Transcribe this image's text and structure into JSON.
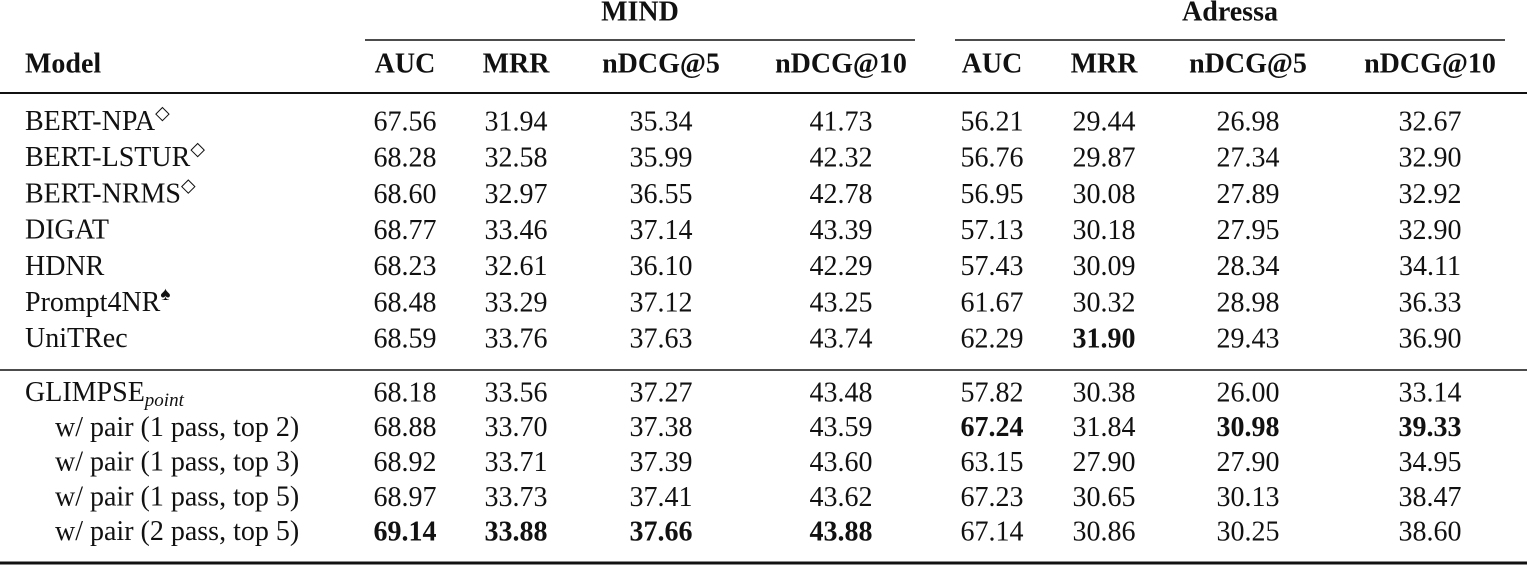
{
  "header": {
    "model_label": "Model",
    "groups": [
      {
        "label": "MIND",
        "columns": [
          "AUC",
          "MRR",
          "nDCG@5",
          "nDCG@10"
        ]
      },
      {
        "label": "Adressa",
        "columns": [
          "AUC",
          "MRR",
          "nDCG@5",
          "nDCG@10"
        ]
      }
    ]
  },
  "table": {
    "sections": [
      {
        "rows": [
          {
            "model": "BERT-NPA",
            "sup": "◇",
            "cells": [
              "67.56",
              "31.94",
              "35.34",
              "41.73",
              "56.21",
              "29.44",
              "26.98",
              "32.67"
            ],
            "bold": []
          },
          {
            "model": "BERT-LSTUR",
            "sup": "◇",
            "cells": [
              "68.28",
              "32.58",
              "35.99",
              "42.32",
              "56.76",
              "29.87",
              "27.34",
              "32.90"
            ],
            "bold": []
          },
          {
            "model": "BERT-NRMS",
            "sup": "◇",
            "cells": [
              "68.60",
              "32.97",
              "36.55",
              "42.78",
              "56.95",
              "30.08",
              "27.89",
              "32.92"
            ],
            "bold": []
          },
          {
            "model": "DIGAT",
            "cells": [
              "68.77",
              "33.46",
              "37.14",
              "43.39",
              "57.13",
              "30.18",
              "27.95",
              "32.90"
            ],
            "bold": []
          },
          {
            "model": "HDNR",
            "cells": [
              "68.23",
              "32.61",
              "36.10",
              "42.29",
              "57.43",
              "30.09",
              "28.34",
              "34.11"
            ],
            "bold": []
          },
          {
            "model": "Prompt4NR",
            "sup": "♠",
            "cells": [
              "68.48",
              "33.29",
              "37.12",
              "43.25",
              "61.67",
              "30.32",
              "28.98",
              "36.33"
            ],
            "bold": []
          },
          {
            "model": "UniTRec",
            "cells": [
              "68.59",
              "33.76",
              "37.63",
              "43.74",
              "62.29",
              "31.90",
              "29.43",
              "36.90"
            ],
            "bold": [
              5
            ]
          }
        ]
      },
      {
        "rows": [
          {
            "model": "GLIMPSE",
            "sub": "point",
            "cells": [
              "68.18",
              "33.56",
              "37.27",
              "43.48",
              "57.82",
              "30.38",
              "26.00",
              "33.14"
            ],
            "bold": []
          },
          {
            "model": "w/ pair (1 pass, top 2)",
            "indent": true,
            "cells": [
              "68.88",
              "33.70",
              "37.38",
              "43.59",
              "67.24",
              "31.84",
              "30.98",
              "39.33"
            ],
            "bold": [
              4,
              6,
              7
            ]
          },
          {
            "model": "w/ pair (1 pass, top 3)",
            "indent": true,
            "cells": [
              "68.92",
              "33.71",
              "37.39",
              "43.60",
              "63.15",
              "27.90",
              "27.90",
              "34.95"
            ],
            "bold": []
          },
          {
            "model": "w/ pair (1 pass, top 5)",
            "indent": true,
            "cells": [
              "68.97",
              "33.73",
              "37.41",
              "43.62",
              "67.23",
              "30.65",
              "30.13",
              "38.47"
            ],
            "bold": []
          },
          {
            "model": "w/ pair (2 pass, top 5)",
            "indent": true,
            "cells": [
              "69.14",
              "33.88",
              "37.66",
              "43.88",
              "67.14",
              "30.86",
              "30.25",
              "38.60"
            ],
            "bold": [
              0,
              1,
              2,
              3
            ]
          }
        ]
      }
    ]
  }
}
